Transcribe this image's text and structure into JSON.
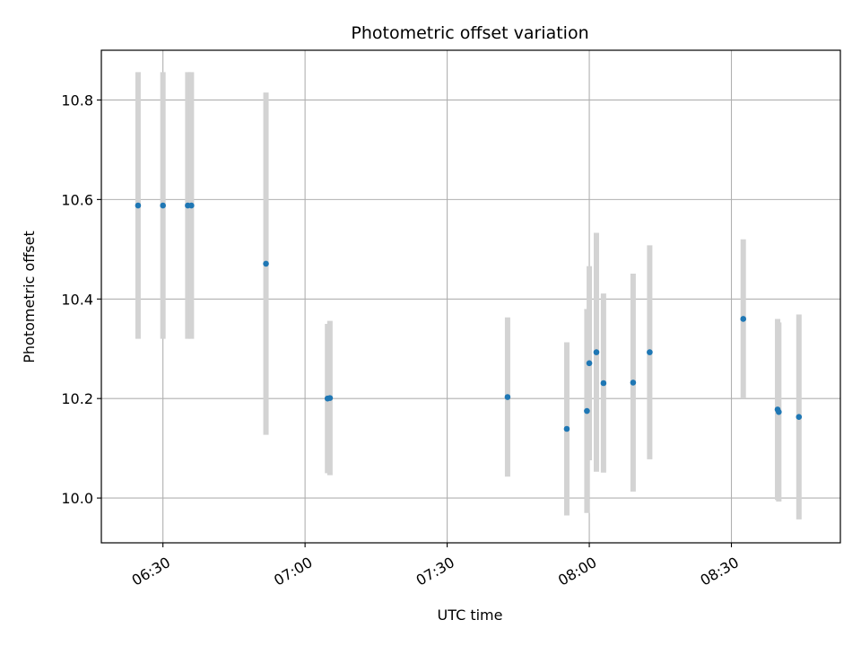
{
  "chart_data": {
    "type": "scatter",
    "title": "Photometric offset variation",
    "xlabel": "UTC time",
    "ylabel": "Photometric offset",
    "x_unit": "UTC time (HH:MM)",
    "xlim": [
      "06:17",
      "08:53"
    ],
    "ylim": [
      9.91,
      10.9
    ],
    "grid": true,
    "xticks": [
      {
        "t": "06:30",
        "label": "06:30"
      },
      {
        "t": "07:00",
        "label": "07:00"
      },
      {
        "t": "07:30",
        "label": "07:30"
      },
      {
        "t": "08:00",
        "label": "08:00"
      },
      {
        "t": "08:30",
        "label": "08:30"
      }
    ],
    "yticks": [
      {
        "v": 10.0,
        "label": "10.0"
      },
      {
        "v": 10.2,
        "label": "10.2"
      },
      {
        "v": 10.4,
        "label": "10.4"
      },
      {
        "v": 10.6,
        "label": "10.6"
      },
      {
        "v": 10.8,
        "label": "10.8"
      }
    ],
    "colors": {
      "point": "#1f77b4",
      "errorbar": "#d3d3d3",
      "grid": "#b0b0b0"
    },
    "points": [
      {
        "t": "06:24:45",
        "y": 10.588,
        "err": 0.268
      },
      {
        "t": "06:30:00",
        "y": 10.588,
        "err": 0.268
      },
      {
        "t": "06:35:15",
        "y": 10.588,
        "err": 0.268
      },
      {
        "t": "06:36:00",
        "y": 10.588,
        "err": 0.268
      },
      {
        "t": "06:51:45",
        "y": 10.471,
        "err": 0.344
      },
      {
        "t": "07:04:45",
        "y": 10.2,
        "err": 0.15
      },
      {
        "t": "07:05:15",
        "y": 10.201,
        "err": 0.155
      },
      {
        "t": "07:42:45",
        "y": 10.203,
        "err": 0.16
      },
      {
        "t": "07:55:15",
        "y": 10.139,
        "err": 0.174
      },
      {
        "t": "07:59:30",
        "y": 10.175,
        "err": 0.205
      },
      {
        "t": "08:00:00",
        "y": 10.271,
        "err": 0.195
      },
      {
        "t": "08:01:30",
        "y": 10.293,
        "err": 0.24
      },
      {
        "t": "08:03:00",
        "y": 10.231,
        "err": 0.18
      },
      {
        "t": "08:09:15",
        "y": 10.232,
        "err": 0.219
      },
      {
        "t": "08:12:45",
        "y": 10.293,
        "err": 0.215
      },
      {
        "t": "08:32:30",
        "y": 10.36,
        "err": 0.16
      },
      {
        "t": "08:39:45",
        "y": 10.178,
        "err": 0.182
      },
      {
        "t": "08:40:00",
        "y": 10.173,
        "err": 0.18
      },
      {
        "t": "08:44:15",
        "y": 10.163,
        "err": 0.206
      }
    ]
  }
}
